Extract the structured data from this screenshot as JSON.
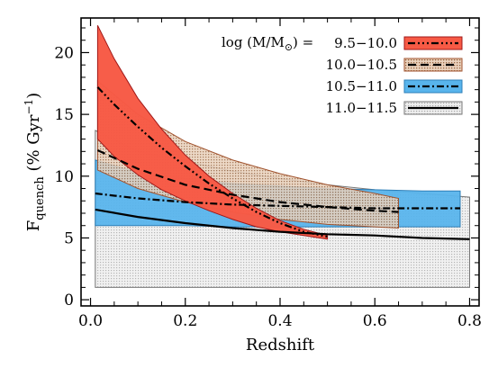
{
  "chart_data": {
    "type": "area",
    "xlabel": "Redshift",
    "ylabel": "F",
    "ylabel_sub": "quench",
    "ylabel_unit": " (% Gyr",
    "ylabel_sup": "−1",
    "ylabel_close": ")",
    "xlim": [
      -0.02,
      0.82
    ],
    "ylim": [
      -0.5,
      22.8
    ],
    "xticks": [
      0.0,
      0.2,
      0.4,
      0.6,
      0.8
    ],
    "xtick_labels": [
      "0.0",
      "0.2",
      "0.4",
      "0.6",
      "0.8"
    ],
    "yticks": [
      0,
      5,
      10,
      15,
      20
    ],
    "ytick_labels": [
      "0",
      "5",
      "10",
      "15",
      "20"
    ],
    "legend_placement": "top-right",
    "legend_title": "log (M/M",
    "legend_title_sub": "⊙",
    "legend_title_close": ") =",
    "series": [
      {
        "name": "9.5−10.0",
        "color": "#f75a45",
        "fill": "solid",
        "line_style": "dash-dot-dot-dot",
        "x": [
          0.015,
          0.05,
          0.1,
          0.15,
          0.2,
          0.25,
          0.3,
          0.35,
          0.4,
          0.45,
          0.5
        ],
        "y": [
          17.2,
          15.8,
          14.0,
          12.3,
          10.8,
          9.4,
          8.2,
          7.1,
          6.2,
          5.5,
          5.1
        ],
        "upper": [
          22.2,
          19.5,
          16.3,
          13.8,
          11.7,
          10.0,
          8.6,
          7.4,
          6.4,
          5.7,
          5.2
        ],
        "lower": [
          13.0,
          11.6,
          10.1,
          8.9,
          8.0,
          7.2,
          6.5,
          5.9,
          5.5,
          5.2,
          4.9
        ]
      },
      {
        "name": "10.0−10.5",
        "color": "#d9b491",
        "fill": "stipple",
        "line_style": "dashed",
        "x": [
          0.015,
          0.1,
          0.2,
          0.3,
          0.4,
          0.5,
          0.6,
          0.65
        ],
        "y": [
          12.1,
          10.6,
          9.3,
          8.5,
          7.9,
          7.5,
          7.2,
          7.1
        ],
        "upper": [
          17.7,
          15.0,
          12.8,
          11.3,
          10.2,
          9.3,
          8.6,
          8.2
        ],
        "lower": [
          10.5,
          9.0,
          7.9,
          7.1,
          6.5,
          6.1,
          5.9,
          5.8
        ]
      },
      {
        "name": "10.5−11.0",
        "color": "#58b4ec",
        "fill": "solid",
        "line_style": "dash-dot",
        "x": [
          0.01,
          0.1,
          0.2,
          0.3,
          0.4,
          0.5,
          0.6,
          0.7,
          0.78
        ],
        "y": [
          8.6,
          8.2,
          7.9,
          7.7,
          7.6,
          7.5,
          7.4,
          7.4,
          7.4
        ],
        "upper": [
          11.3,
          10.3,
          9.8,
          9.4,
          9.2,
          9.0,
          8.9,
          8.8,
          8.8
        ],
        "lower": [
          6.0,
          6.0,
          6.0,
          5.9,
          5.9,
          5.9,
          5.9,
          5.9,
          5.9
        ]
      },
      {
        "name": "11.0−11.5",
        "color": "#c8c8c8",
        "fill": "stipple",
        "line_style": "solid",
        "x": [
          0.01,
          0.1,
          0.2,
          0.3,
          0.4,
          0.5,
          0.6,
          0.7,
          0.8
        ],
        "y": [
          7.3,
          6.7,
          6.2,
          5.8,
          5.5,
          5.3,
          5.2,
          5.0,
          4.9
        ],
        "upper": [
          13.7,
          12.0,
          11.2,
          10.4,
          9.8,
          9.3,
          8.9,
          8.6,
          8.3
        ],
        "lower": [
          1.0,
          1.0,
          1.0,
          1.0,
          1.0,
          1.0,
          1.0,
          1.0,
          1.0
        ]
      }
    ]
  }
}
